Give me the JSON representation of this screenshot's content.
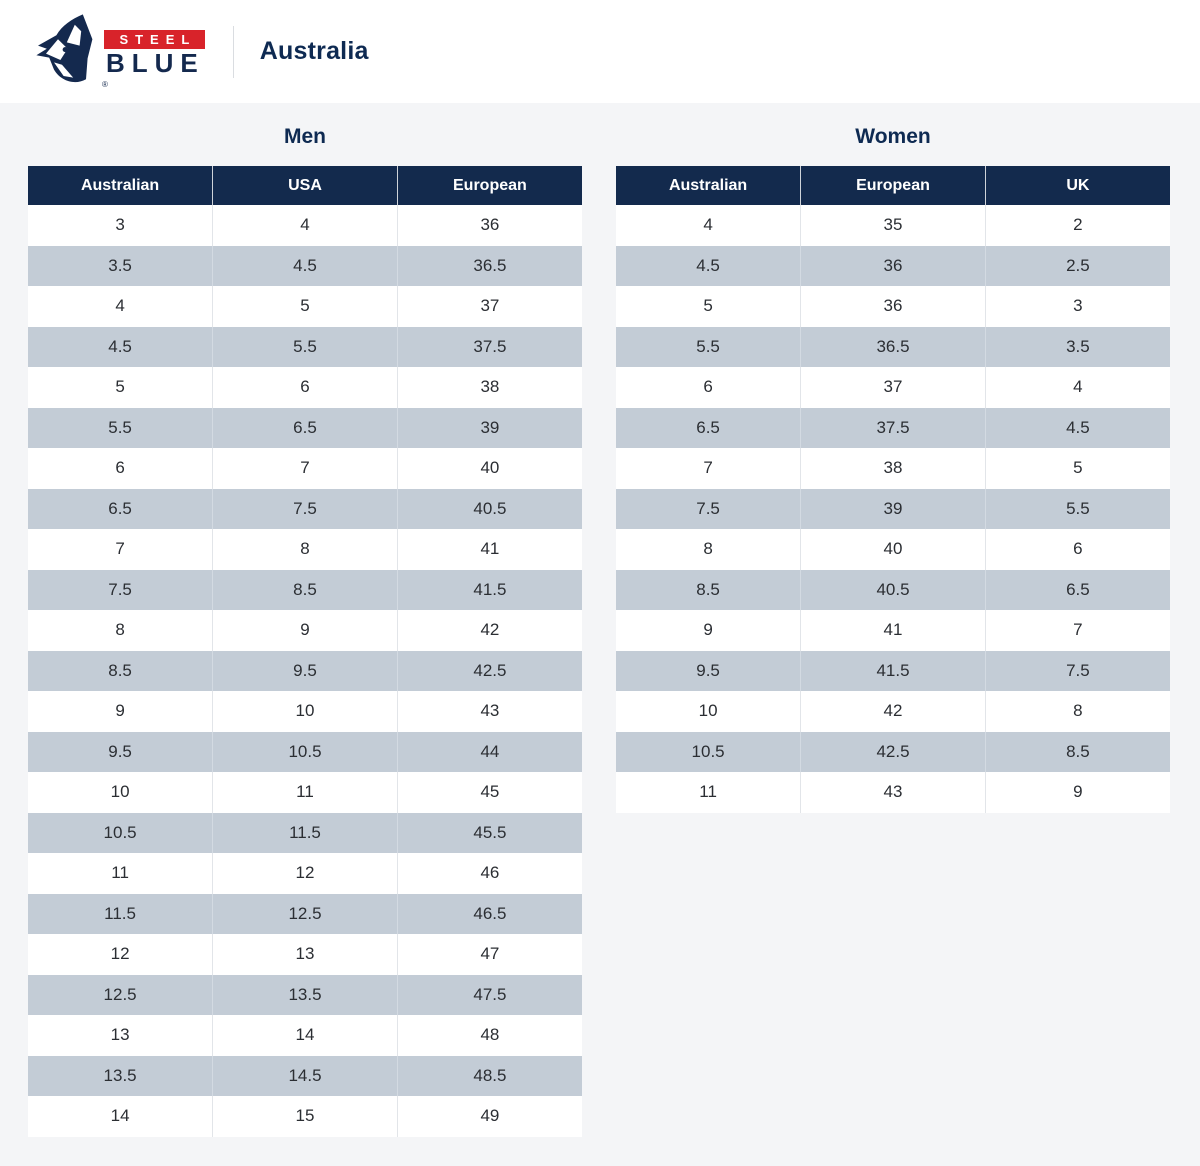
{
  "header": {
    "brand": {
      "steel_label": "STEEL",
      "blue_label": "BLUE",
      "registered_mark": "®"
    },
    "region_label": "Australia"
  },
  "tables": [
    {
      "id": "men",
      "title": "Men",
      "columns": [
        "Australian",
        "USA",
        "European"
      ],
      "rows": [
        [
          "3",
          "4",
          "36"
        ],
        [
          "3.5",
          "4.5",
          "36.5"
        ],
        [
          "4",
          "5",
          "37"
        ],
        [
          "4.5",
          "5.5",
          "37.5"
        ],
        [
          "5",
          "6",
          "38"
        ],
        [
          "5.5",
          "6.5",
          "39"
        ],
        [
          "6",
          "7",
          "40"
        ],
        [
          "6.5",
          "7.5",
          "40.5"
        ],
        [
          "7",
          "8",
          "41"
        ],
        [
          "7.5",
          "8.5",
          "41.5"
        ],
        [
          "8",
          "9",
          "42"
        ],
        [
          "8.5",
          "9.5",
          "42.5"
        ],
        [
          "9",
          "10",
          "43"
        ],
        [
          "9.5",
          "10.5",
          "44"
        ],
        [
          "10",
          "11",
          "45"
        ],
        [
          "10.5",
          "11.5",
          "45.5"
        ],
        [
          "11",
          "12",
          "46"
        ],
        [
          "11.5",
          "12.5",
          "46.5"
        ],
        [
          "12",
          "13",
          "47"
        ],
        [
          "12.5",
          "13.5",
          "47.5"
        ],
        [
          "13",
          "14",
          "48"
        ],
        [
          "13.5",
          "14.5",
          "48.5"
        ],
        [
          "14",
          "15",
          "49"
        ]
      ]
    },
    {
      "id": "women",
      "title": "Women",
      "columns": [
        "Australian",
        "European",
        "UK"
      ],
      "rows": [
        [
          "4",
          "35",
          "2"
        ],
        [
          "4.5",
          "36",
          "2.5"
        ],
        [
          "5",
          "36",
          "3"
        ],
        [
          "5.5",
          "36.5",
          "3.5"
        ],
        [
          "6",
          "37",
          "4"
        ],
        [
          "6.5",
          "37.5",
          "4.5"
        ],
        [
          "7",
          "38",
          "5"
        ],
        [
          "7.5",
          "39",
          "5.5"
        ],
        [
          "8",
          "40",
          "6"
        ],
        [
          "8.5",
          "40.5",
          "6.5"
        ],
        [
          "9",
          "41",
          "7"
        ],
        [
          "9.5",
          "41.5",
          "7.5"
        ],
        [
          "10",
          "42",
          "8"
        ],
        [
          "10.5",
          "42.5",
          "8.5"
        ],
        [
          "11",
          "43",
          "9"
        ]
      ]
    }
  ],
  "colors": {
    "navy_header": "#132a4d",
    "navy_text": "#0e2a52",
    "logo_navy": "#14294e",
    "logo_red": "#d8232a",
    "row_stripe": "#c3ccd6",
    "page_background": "#f4f5f7",
    "content_background": "#ffffff"
  }
}
